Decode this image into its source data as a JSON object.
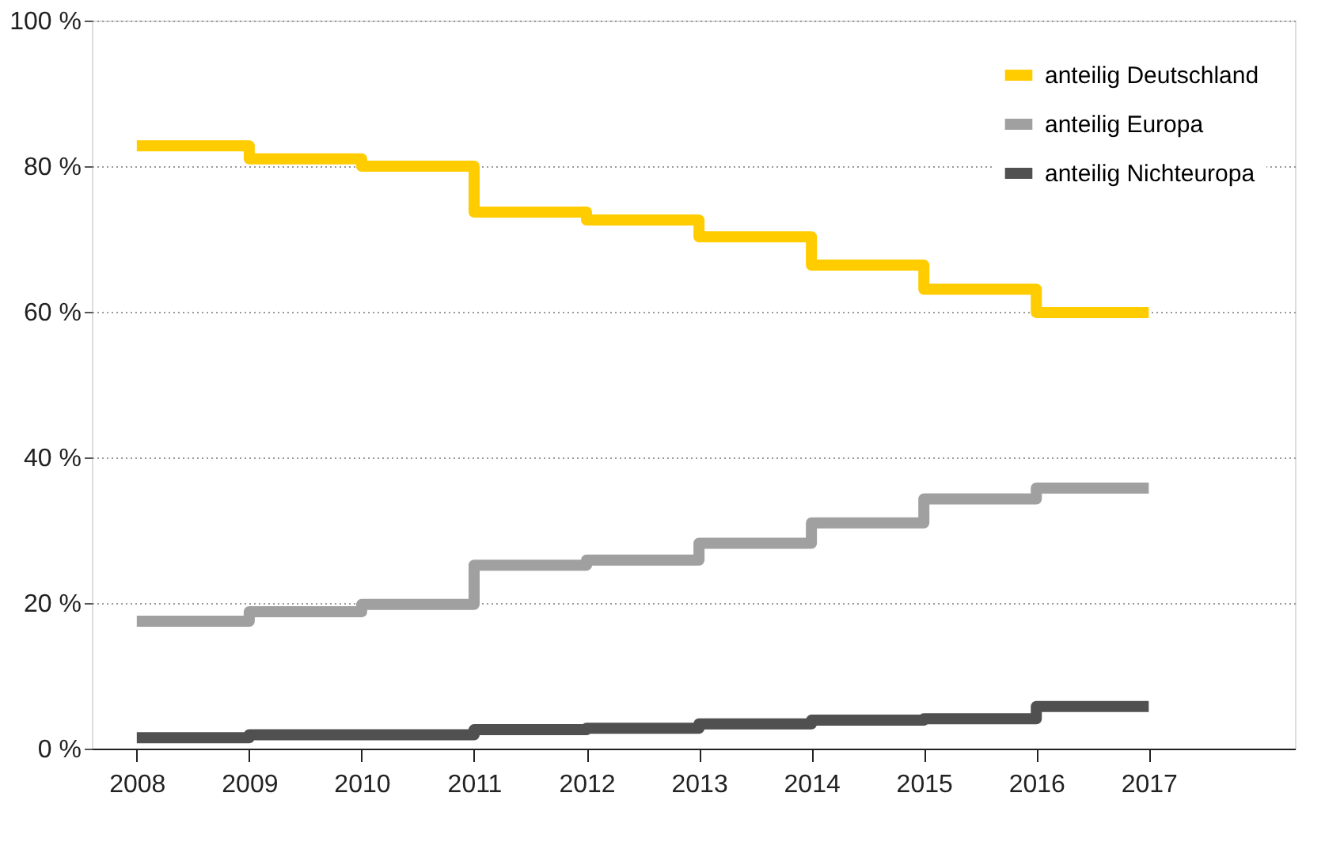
{
  "chart_data": {
    "type": "step",
    "x": [
      2008,
      2009,
      2010,
      2011,
      2012,
      2013,
      2014,
      2015,
      2016,
      2017
    ],
    "series": [
      {
        "name": "anteilig Deutschland",
        "color": "#ffcc00",
        "values": [
          82.8,
          81.0,
          80.0,
          73.7,
          72.6,
          70.3,
          66.4,
          63.1,
          59.9,
          59.9
        ]
      },
      {
        "name": "anteilig Europa",
        "color": "#a0a0a0",
        "values": [
          17.5,
          18.8,
          19.8,
          25.2,
          25.9,
          28.2,
          31.0,
          34.3,
          35.8,
          35.8
        ]
      },
      {
        "name": "anteilig Nichteuropa",
        "color": "#505050",
        "values": [
          1.5,
          1.9,
          1.9,
          2.6,
          2.8,
          3.4,
          3.9,
          4.1,
          5.8,
          5.8
        ]
      }
    ],
    "xlim": [
      2007.6,
      2018.3
    ],
    "xticks": [
      2008,
      2009,
      2010,
      2011,
      2012,
      2013,
      2014,
      2015,
      2016,
      2017
    ],
    "ylim": [
      0,
      100
    ],
    "yticks": [
      {
        "value": 0,
        "label": "0 %"
      },
      {
        "value": 20,
        "label": "20 %"
      },
      {
        "value": 40,
        "label": "40 %"
      },
      {
        "value": 60,
        "label": "60 %"
      },
      {
        "value": 80,
        "label": "80 %"
      },
      {
        "value": 100,
        "label": "100 %"
      }
    ],
    "grid": "y",
    "legend": "top right",
    "line_style": "solid",
    "marker": "none"
  }
}
